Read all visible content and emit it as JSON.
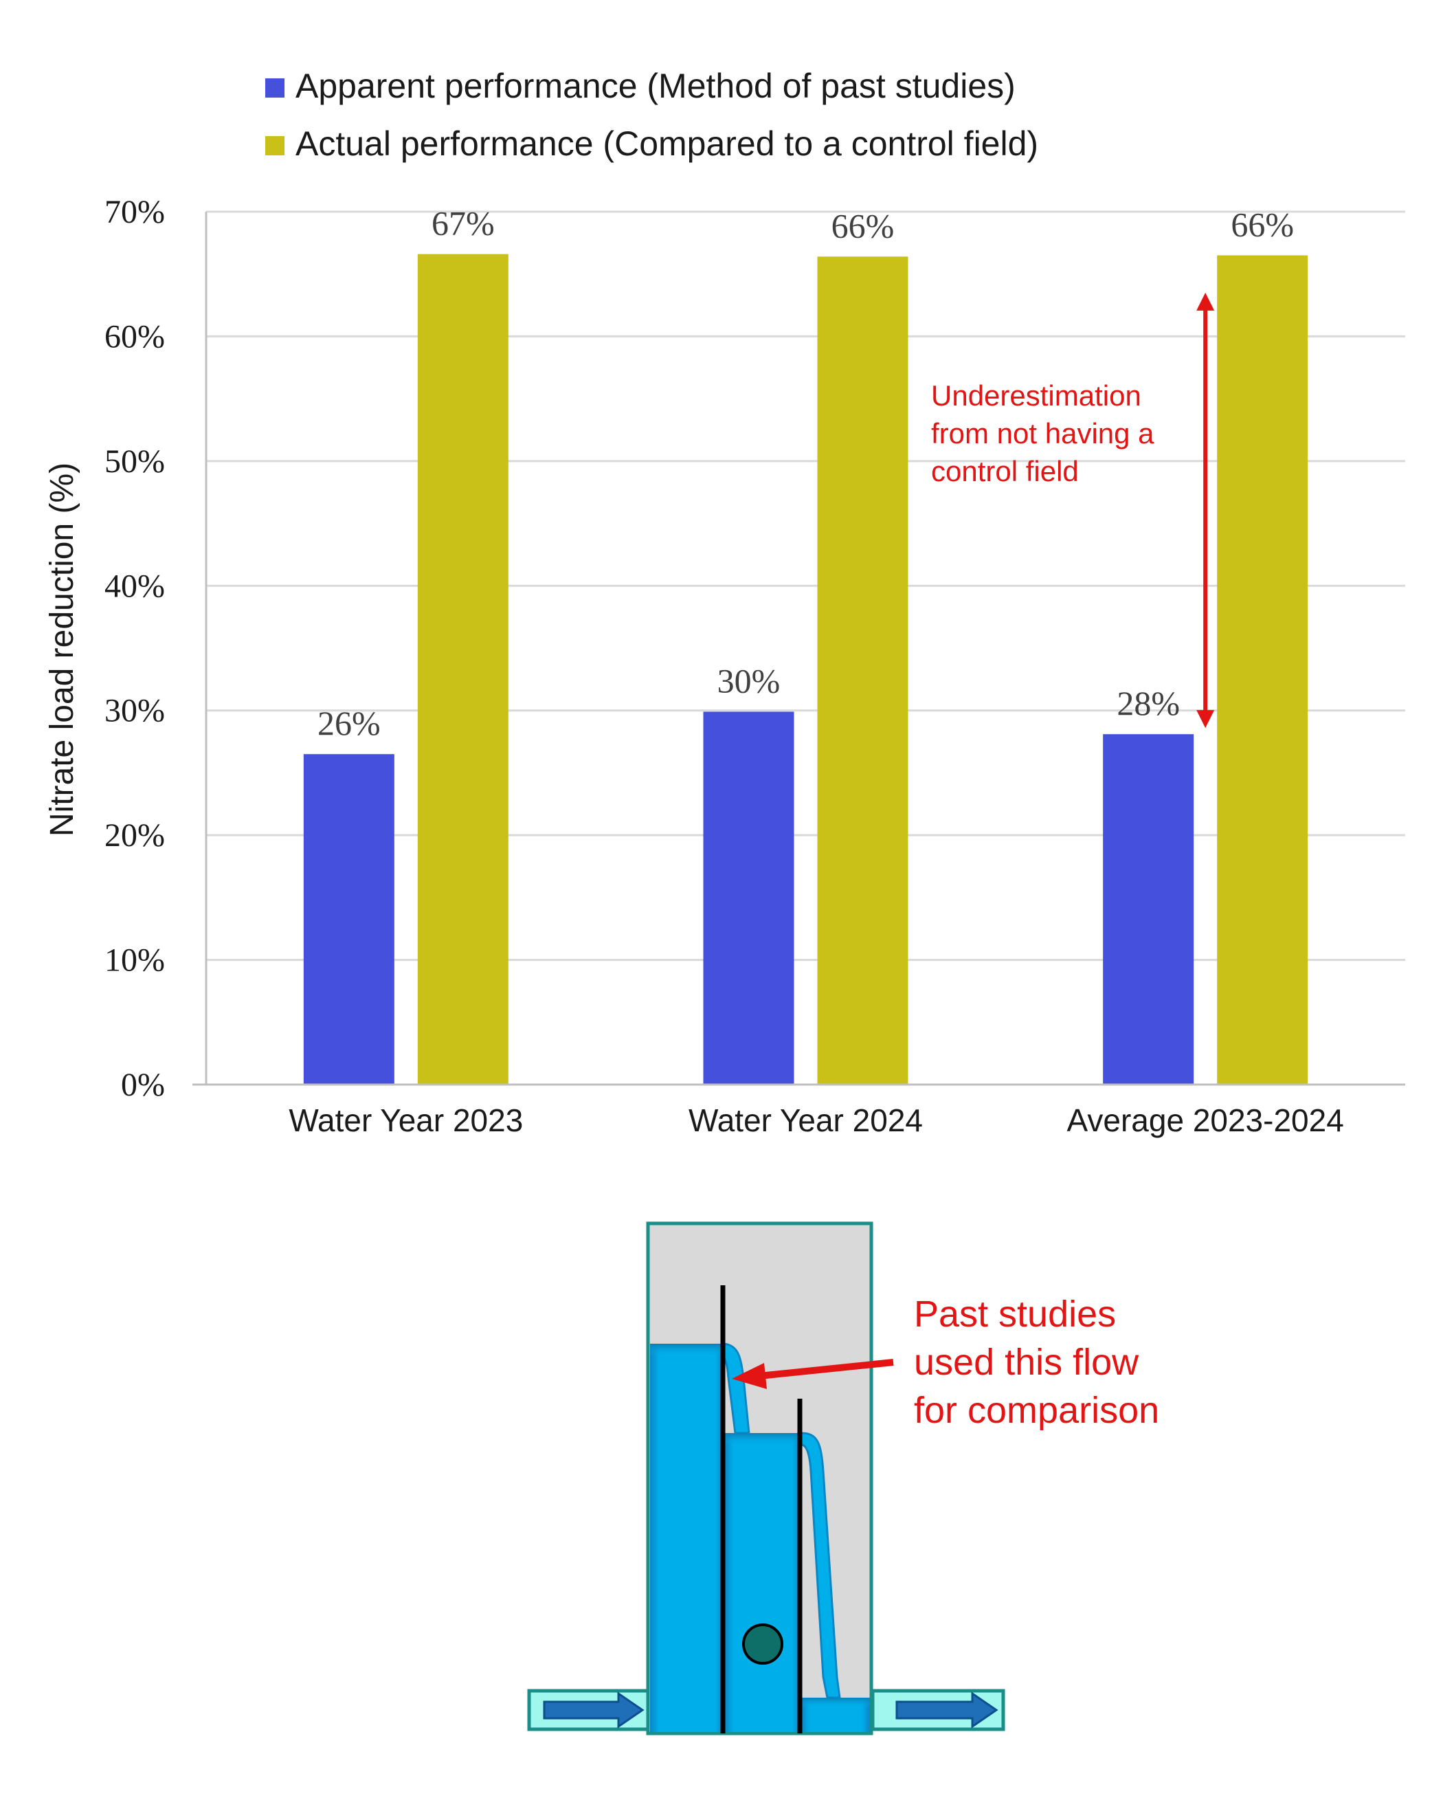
{
  "colors": {
    "apparent": "#4550dc",
    "actual": "#c9c118",
    "grid": "#d9d9d9",
    "axis": "#bfbfbf",
    "annotation": "#e31414",
    "water": "#00a9e6",
    "box_fill": "#d9d9d9",
    "box_border": "#1a8f8a",
    "pipe_fill": "#9ff7ee",
    "pipe_arrow": "#1f6fb8",
    "sensor": "#0e6e68"
  },
  "chart_data": {
    "type": "bar",
    "categories": [
      "Water Year 2023",
      "Water Year 2024",
      "Average 2023-2024"
    ],
    "series": [
      {
        "name": "Apparent performance (Method of past studies)",
        "values": [
          26.5,
          29.9,
          28.1
        ],
        "labels": [
          "26%",
          "30%",
          "28%"
        ]
      },
      {
        "name": "Actual performance (Compared to a control field)",
        "values": [
          66.6,
          66.4,
          66.5
        ],
        "labels": [
          "67%",
          "66%",
          "66%"
        ]
      }
    ],
    "ylabel": "Nitrate load reduction (%)",
    "ylim": [
      0,
      70
    ],
    "yticks": [
      0,
      10,
      20,
      30,
      40,
      50,
      60,
      70
    ],
    "ytick_labels": [
      "0%",
      "10%",
      "20%",
      "30%",
      "40%",
      "50%",
      "60%",
      "70%"
    ],
    "grid": true,
    "legend_position": "top",
    "annotation": {
      "lines": [
        "Underestimation",
        "from not having a",
        "control field"
      ],
      "category_index": 2,
      "from_value": 28.6,
      "to_value": 63.5
    }
  },
  "diagram": {
    "callout_lines": [
      "Past studies",
      "used this flow",
      "for comparison"
    ]
  }
}
